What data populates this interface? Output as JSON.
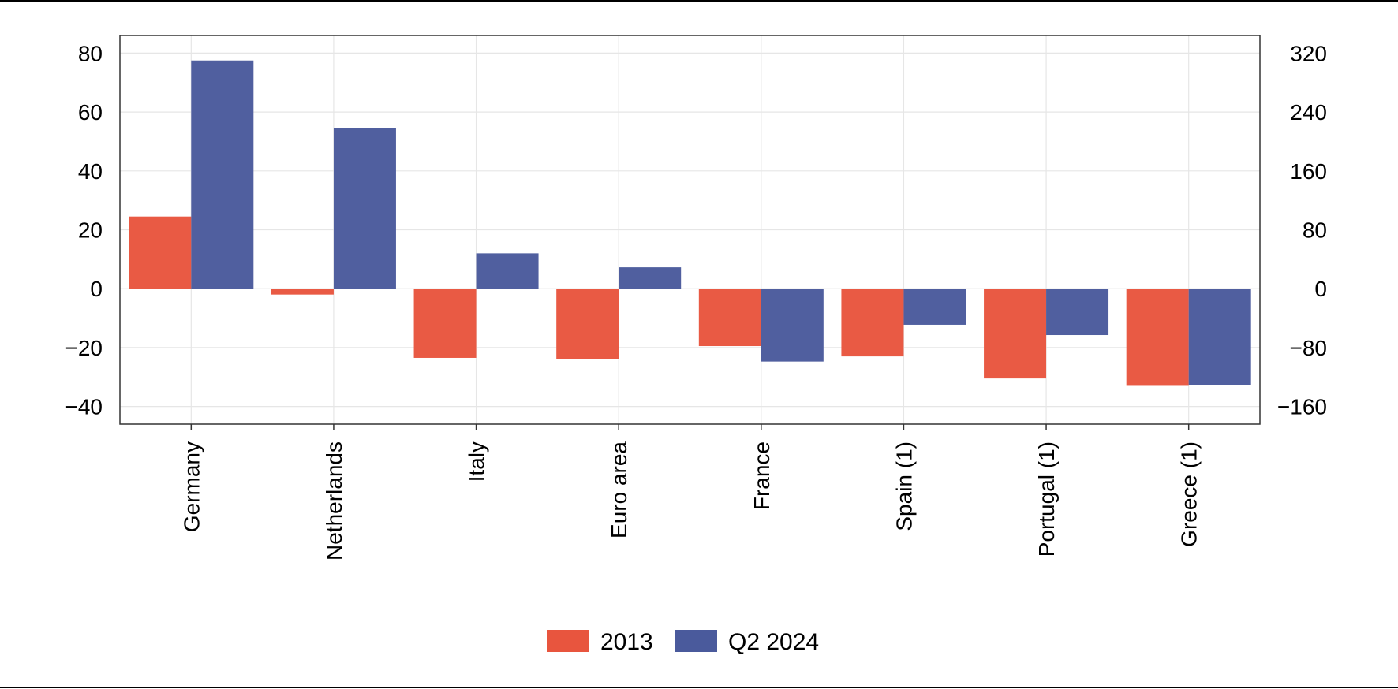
{
  "chart_data": {
    "type": "bar",
    "title": "",
    "xlabel": "",
    "ylabel": "",
    "categories": [
      "Germany",
      "Netherlands",
      "Italy",
      "Euro area",
      "France",
      "Spain (1)",
      "Portugal (1)",
      "Greece (1)"
    ],
    "series": [
      {
        "name": "2013",
        "axis": "left",
        "color": "#e8553e",
        "values": [
          24.5,
          -2,
          -23.5,
          -24,
          -19.5,
          -23,
          -30.5,
          -33
        ]
      },
      {
        "name": "Q2 2024",
        "axis": "right",
        "color": "#4a5a9c",
        "values": [
          310,
          218,
          48,
          29,
          -99,
          -49,
          -63,
          -131
        ]
      }
    ],
    "ylim_left": [
      -46,
      86
    ],
    "yticks_left": [
      80,
      60,
      40,
      20,
      0,
      -20,
      -40
    ],
    "ytick_labels_left": [
      "80",
      "60",
      "40",
      "20",
      "0",
      "−20",
      "−40"
    ],
    "ylim_right": [
      -184,
      344
    ],
    "yticks_right": [
      320,
      240,
      160,
      80,
      0,
      -80,
      -160
    ],
    "ytick_labels_right": [
      "320",
      "240",
      "160",
      "80",
      "0",
      "−80",
      "−160"
    ],
    "grid": true,
    "legend_position": "bottom-center",
    "colors": {
      "grid": "#e6e6e6",
      "axis_frame": "#333333"
    }
  }
}
